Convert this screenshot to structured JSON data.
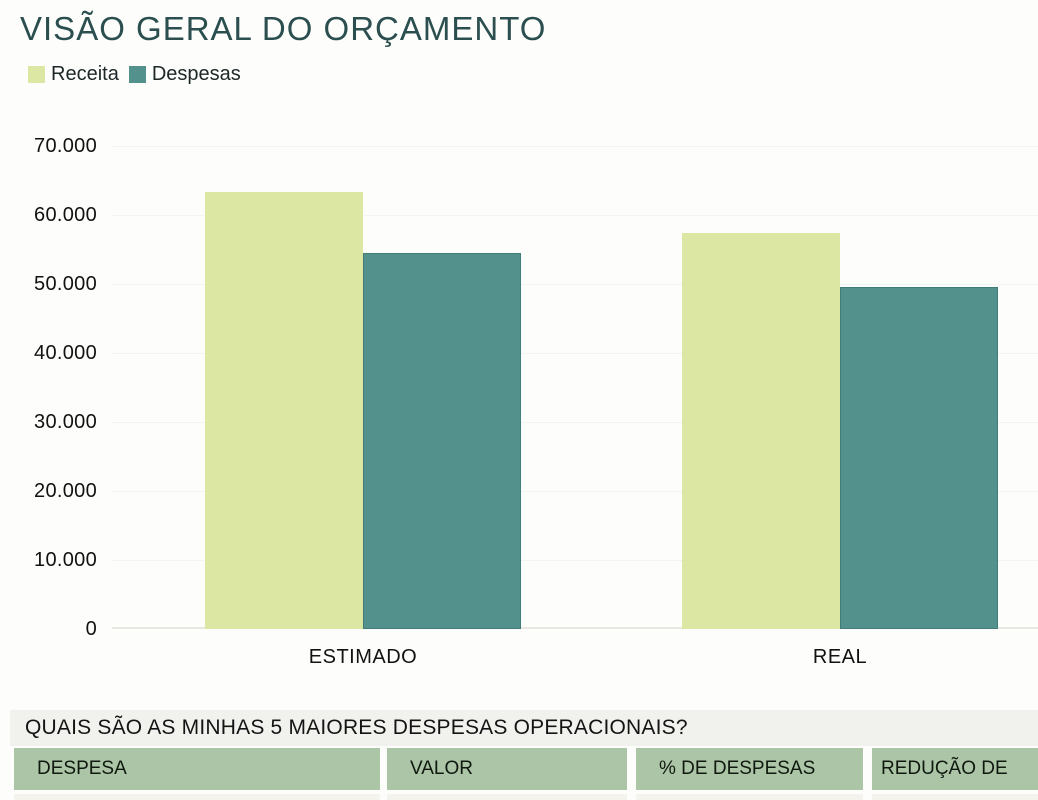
{
  "header": {
    "title": "VISÃO GERAL DO ORÇAMENTO",
    "title_color": "#2b4e4e"
  },
  "chart_data": {
    "type": "bar",
    "title": "VISÃO GERAL DO ORÇAMENTO",
    "categories": [
      "ESTIMADO",
      "REAL"
    ],
    "series": [
      {
        "name": "Receita",
        "color": "#dce7a3",
        "values": [
          63300,
          57450
        ]
      },
      {
        "name": "Despesas",
        "color": "#52918c",
        "border": "rgba(47,100,95,0.45)",
        "values": [
          54500,
          49630
        ]
      }
    ],
    "ylim": [
      0,
      70000
    ],
    "ytick_step": 10000,
    "ytick_labels": [
      "70.000",
      "60.000",
      "50.000",
      "40.000",
      "30.000",
      "20.000",
      "10.000",
      "0"
    ],
    "grid": true,
    "legend_position": "top-left"
  },
  "expenses_section": {
    "title": "QUAIS SÃO AS MINHAS 5 MAIORES DESPESAS OPERACIONAIS?",
    "strip_bg": "#f1f1ee",
    "header_bg": "#acc5a6",
    "columns": [
      "DESPESA",
      "VALOR",
      "% DE DESPESAS",
      "REDUÇÃO DE"
    ]
  }
}
